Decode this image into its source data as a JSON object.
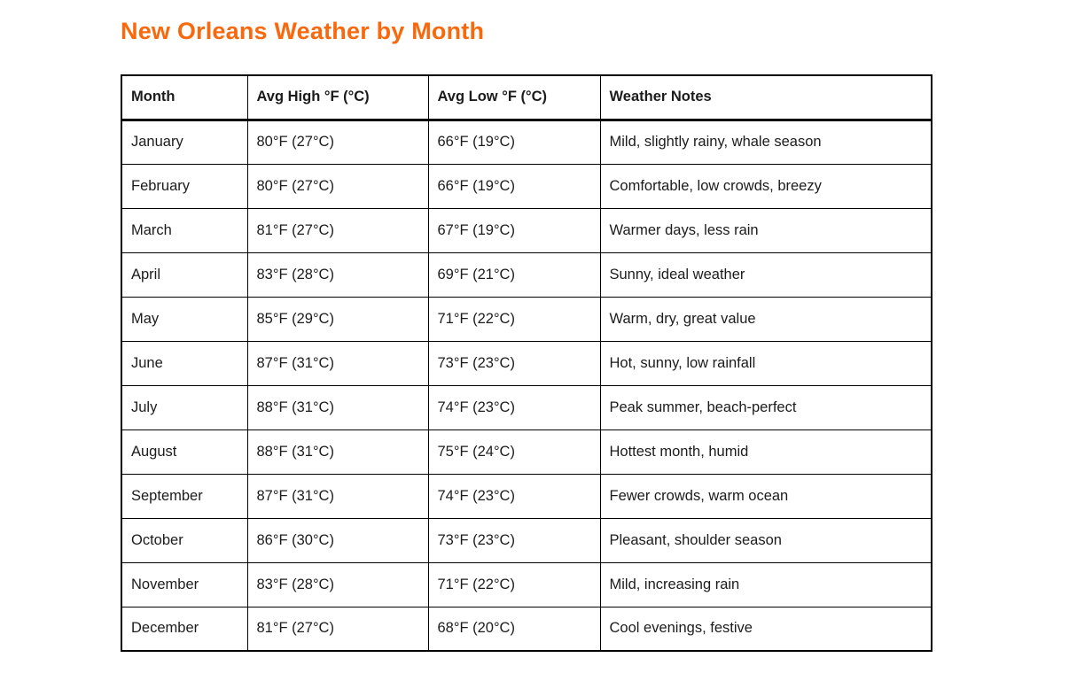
{
  "page": {
    "title": "New Orleans Weather by Month",
    "title_color": "#F8690E",
    "background_color": "#FFFFFF",
    "border_color": "#000000"
  },
  "table": {
    "columns": [
      "Month",
      "Avg High °F (°C)",
      "Avg Low °F (°C)",
      "Weather Notes"
    ],
    "rows": [
      [
        "January",
        "80°F (27°C)",
        "66°F (19°C)",
        "Mild, slightly rainy, whale season"
      ],
      [
        "February",
        "80°F (27°C)",
        "66°F (19°C)",
        "Comfortable, low crowds, breezy"
      ],
      [
        "March",
        "81°F (27°C)",
        "67°F (19°C)",
        "Warmer days, less rain"
      ],
      [
        "April",
        "83°F (28°C)",
        "69°F (21°C)",
        "Sunny, ideal weather"
      ],
      [
        "May",
        "85°F (29°C)",
        "71°F (22°C)",
        "Warm, dry, great value"
      ],
      [
        "June",
        "87°F (31°C)",
        "73°F (23°C)",
        "Hot, sunny, low rainfall"
      ],
      [
        "July",
        "88°F (31°C)",
        "74°F (23°C)",
        "Peak summer, beach-perfect"
      ],
      [
        "August",
        "88°F (31°C)",
        "75°F (24°C)",
        "Hottest month, humid"
      ],
      [
        "September",
        "87°F (31°C)",
        "74°F (23°C)",
        "Fewer crowds, warm ocean"
      ],
      [
        "October",
        "86°F (30°C)",
        "73°F (23°C)",
        "Pleasant, shoulder season"
      ],
      [
        "November",
        "83°F (28°C)",
        "71°F (22°C)",
        "Mild, increasing rain"
      ],
      [
        "December",
        "81°F (27°C)",
        "68°F (20°C)",
        "Cool evenings, festive"
      ]
    ]
  }
}
